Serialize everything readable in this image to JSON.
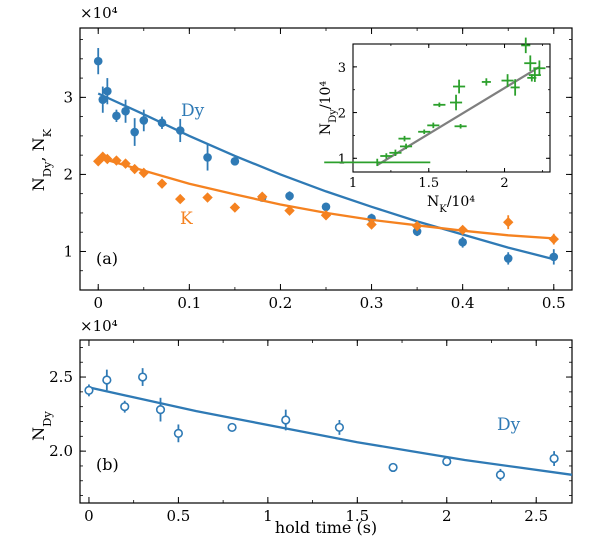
{
  "colors": {
    "dy": "#2f7ab5",
    "k": "#f58220",
    "inset_points": "#2ca02c",
    "inset_fit": "#7f7f7f",
    "axes": "#000000"
  },
  "chart_data": [
    {
      "id": "a",
      "type": "scatter",
      "panel_label": "(a)",
      "scale_label": "×10⁴",
      "xlabel": "",
      "ylabel": "N_Dy, N_K",
      "xlim": [
        -0.02,
        0.52
      ],
      "ylim": [
        0.5,
        3.9
      ],
      "x_ticks": [
        0,
        0.1,
        0.2,
        0.3,
        0.4,
        0.5
      ],
      "x_tick_labels": [
        "0",
        "0.1",
        "0.2",
        "0.3",
        "0.4",
        "0.5"
      ],
      "y_ticks": [
        1,
        2,
        3
      ],
      "y_tick_labels": [
        "1",
        "2",
        "3"
      ],
      "series": [
        {
          "name": "Dy",
          "color": "#2f7ab5",
          "marker": "circle",
          "x": [
            0.0,
            0.005,
            0.01,
            0.02,
            0.03,
            0.04,
            0.05,
            0.07,
            0.09,
            0.12,
            0.15,
            0.18,
            0.21,
            0.25,
            0.3,
            0.35,
            0.4,
            0.45,
            0.5
          ],
          "y": [
            3.47,
            2.97,
            3.08,
            2.76,
            2.82,
            2.55,
            2.7,
            2.67,
            2.57,
            2.22,
            2.17,
            1.7,
            1.72,
            1.58,
            1.43,
            1.26,
            1.12,
            0.91,
            0.93
          ],
          "yerr": [
            0.17,
            0.17,
            0.17,
            0.08,
            0.15,
            0.18,
            0.14,
            0.08,
            0.15,
            0.17,
            0.05,
            0.05,
            0.06,
            0.05,
            0.06,
            0.06,
            0.07,
            0.08,
            0.1
          ],
          "fit": {
            "x": [
              0,
              0.05,
              0.1,
              0.15,
              0.2,
              0.25,
              0.3,
              0.35,
              0.4,
              0.45,
              0.5
            ],
            "y": [
              3.05,
              2.78,
              2.5,
              2.24,
              2.0,
              1.78,
              1.58,
              1.39,
              1.22,
              1.05,
              0.9
            ]
          }
        },
        {
          "name": "K",
          "color": "#f58220",
          "marker": "diamond",
          "x": [
            0.0,
            0.005,
            0.01,
            0.02,
            0.03,
            0.04,
            0.05,
            0.07,
            0.09,
            0.12,
            0.15,
            0.18,
            0.21,
            0.25,
            0.3,
            0.35,
            0.4,
            0.45,
            0.5
          ],
          "y": [
            2.17,
            2.23,
            2.2,
            2.18,
            2.14,
            2.07,
            2.02,
            1.88,
            1.68,
            1.7,
            1.57,
            1.71,
            1.53,
            1.47,
            1.35,
            1.33,
            1.28,
            1.38,
            1.16
          ],
          "yerr": [
            0.04,
            0.04,
            0.04,
            0.03,
            0.03,
            0.03,
            0.04,
            0.03,
            0.04,
            0.04,
            0.04,
            0.04,
            0.04,
            0.04,
            0.04,
            0.04,
            0.04,
            0.09,
            0.07
          ],
          "fit": {
            "x": [
              0,
              0.05,
              0.1,
              0.15,
              0.2,
              0.25,
              0.3,
              0.35,
              0.4,
              0.45,
              0.5
            ],
            "y": [
              2.22,
              2.05,
              1.88,
              1.74,
              1.61,
              1.5,
              1.41,
              1.34,
              1.27,
              1.21,
              1.17
            ]
          }
        }
      ]
    },
    {
      "id": "a-inset",
      "type": "scatter",
      "xlabel": "N_K/10⁴",
      "ylabel": "N_Dy/10⁴",
      "xlim": [
        1.0,
        2.3
      ],
      "ylim": [
        0.7,
        3.5
      ],
      "x_ticks": [
        1,
        1.5,
        2
      ],
      "x_tick_labels": [
        "1",
        "1.5",
        "2"
      ],
      "y_ticks": [
        1,
        2,
        3
      ],
      "y_tick_labels": [
        "1",
        "2",
        "3"
      ],
      "series": [
        {
          "name": "",
          "color": "#2ca02c",
          "marker": "cross",
          "x": [
            1.16,
            1.22,
            1.28,
            1.35,
            1.47,
            1.57,
            1.68,
            1.7,
            1.88,
            2.02,
            2.07,
            2.14,
            2.17,
            2.18,
            2.2,
            2.23,
            1.71,
            1.53,
            1.34
          ],
          "y": [
            0.91,
            1.05,
            1.12,
            1.26,
            1.58,
            2.17,
            2.22,
            2.57,
            2.67,
            2.7,
            2.55,
            3.47,
            3.08,
            2.76,
            2.82,
            2.97,
            1.7,
            1.72,
            1.43
          ],
          "xerr": [
            0.35,
            0.04,
            0.04,
            0.04,
            0.04,
            0.04,
            0.04,
            0.04,
            0.03,
            0.04,
            0.03,
            0.03,
            0.04,
            0.03,
            0.04,
            0.04,
            0.04,
            0.04,
            0.04
          ],
          "yerr": [
            0.08,
            0.06,
            0.07,
            0.06,
            0.05,
            0.05,
            0.17,
            0.15,
            0.08,
            0.14,
            0.18,
            0.17,
            0.17,
            0.08,
            0.15,
            0.17,
            0.05,
            0.06,
            0.06
          ]
        }
      ],
      "fit": {
        "x": [
          1.16,
          2.23
        ],
        "y": [
          0.85,
          3.0
        ]
      }
    },
    {
      "id": "b",
      "type": "scatter",
      "panel_label": "(b)",
      "scale_label": "×10⁴",
      "xlabel": "hold time (s)",
      "ylabel": "N_Dy",
      "xlim": [
        -0.05,
        2.7
      ],
      "ylim": [
        1.65,
        2.75
      ],
      "x_ticks": [
        0,
        0.5,
        1,
        1.5,
        2,
        2.5
      ],
      "x_tick_labels": [
        "0",
        "0.5",
        "1",
        "1.5",
        "2",
        "2.5"
      ],
      "y_ticks": [
        2.0,
        2.5
      ],
      "y_tick_labels": [
        "2.0",
        "2.5"
      ],
      "series": [
        {
          "name": "Dy",
          "color": "#2f7ab5",
          "marker": "open-circle",
          "x": [
            0.0,
            0.1,
            0.2,
            0.3,
            0.4,
            0.5,
            0.8,
            1.1,
            1.4,
            1.7,
            2.0,
            2.3,
            2.6
          ],
          "y": [
            2.41,
            2.48,
            2.3,
            2.5,
            2.28,
            2.12,
            2.16,
            2.21,
            2.16,
            1.89,
            1.93,
            1.84,
            1.95
          ],
          "yerr": [
            0.04,
            0.07,
            0.04,
            0.06,
            0.08,
            0.06,
            0.02,
            0.07,
            0.05,
            0.02,
            0.03,
            0.04,
            0.05
          ],
          "fit": {
            "x": [
              0,
              0.3,
              0.6,
              0.9,
              1.2,
              1.5,
              1.8,
              2.1,
              2.4,
              2.7
            ],
            "y": [
              2.43,
              2.35,
              2.27,
              2.2,
              2.13,
              2.06,
              2.0,
              1.94,
              1.89,
              1.84
            ]
          }
        }
      ]
    }
  ]
}
